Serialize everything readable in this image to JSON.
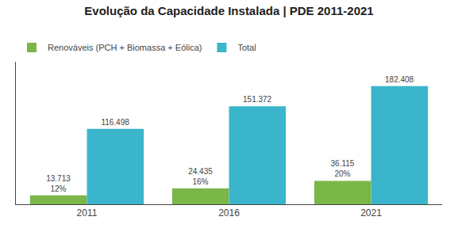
{
  "chart_data": {
    "type": "bar",
    "title": "Evolução da Capacidade Instalada | PDE 2011-2021",
    "categories": [
      "2011",
      "2016",
      "2021"
    ],
    "series": [
      {
        "name": "Renováveis (PCH + Biomassa + Eólica)",
        "color": "#7ab648",
        "values": [
          13713,
          24435,
          36115
        ],
        "value_labels": [
          "13.713",
          "24.435",
          "36.115"
        ],
        "shares": [
          12,
          16,
          20
        ],
        "share_labels": [
          "12%",
          "16%",
          "20%"
        ]
      },
      {
        "name": "Total",
        "color": "#3ab5cc",
        "values": [
          116498,
          151372,
          182408
        ],
        "value_labels": [
          "116.498",
          "151.372",
          "182.408"
        ]
      }
    ],
    "ylim": [
      0,
      220000
    ],
    "grid": false,
    "legend": "top left",
    "data_labels": true,
    "tick_labels": "x"
  }
}
